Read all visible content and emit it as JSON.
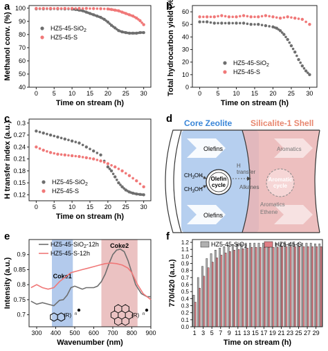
{
  "chart_data": [
    {
      "panel": "a",
      "type": "scatter",
      "xlabel": "Time on stream (h)",
      "ylabel": "Methanol conv. (%)",
      "xlim": [
        -2,
        32
      ],
      "ylim": [
        40,
        102
      ],
      "xticks": [
        0,
        5,
        10,
        15,
        20,
        25,
        30
      ],
      "yticks": [
        40,
        50,
        60,
        70,
        80,
        90,
        100
      ],
      "legend_position": "left",
      "series": [
        {
          "name": "HZ5-45-SiO",
          "sub": "2",
          "color": "#6e6e6e",
          "x": [
            0,
            2,
            4,
            6,
            8,
            10,
            11,
            12,
            13,
            14,
            15,
            16,
            17,
            18,
            19,
            20,
            21,
            22,
            23,
            24,
            25,
            26,
            27,
            28,
            29,
            30
          ],
          "y": [
            99.5,
            99.5,
            99.5,
            99.5,
            99.4,
            99.3,
            99.0,
            98.5,
            98.0,
            97.0,
            96.0,
            95.0,
            94.0,
            93.0,
            91.5,
            89.5,
            87.0,
            85.0,
            83.0,
            82.0,
            81.5,
            81.0,
            81.0,
            81.0,
            81.5,
            81.5
          ]
        },
        {
          "name": "HZ5-45-S",
          "sub": "",
          "color": "#f07878",
          "x": [
            0,
            2,
            4,
            6,
            8,
            10,
            12,
            14,
            16,
            18,
            20,
            21,
            22,
            23,
            24,
            25,
            26,
            27,
            28,
            29,
            30
          ],
          "y": [
            99.8,
            99.8,
            99.8,
            99.8,
            99.8,
            99.8,
            99.8,
            99.8,
            99.7,
            99.6,
            99.4,
            99.0,
            98.5,
            98.0,
            97.0,
            96.0,
            95.0,
            94.0,
            92.5,
            90.5,
            87.5
          ]
        }
      ]
    },
    {
      "panel": "b",
      "type": "scatter",
      "xlabel": "Time on stream (h)",
      "ylabel": "Total hydrocarbon yield (%)",
      "xlim": [
        -2,
        32
      ],
      "ylim": [
        0,
        65
      ],
      "xticks": [
        0,
        5,
        10,
        15,
        20,
        25,
        30
      ],
      "yticks": [
        0,
        10,
        20,
        30,
        40,
        50,
        60
      ],
      "legend_position": "bottom-left",
      "series": [
        {
          "name": "HZ5-45-SiO",
          "sub": "2",
          "color": "#6e6e6e",
          "x": [
            0,
            2,
            4,
            6,
            8,
            10,
            12,
            14,
            16,
            18,
            20,
            21,
            22,
            23,
            24,
            25,
            26,
            27,
            28,
            29,
            30
          ],
          "y": [
            52,
            52,
            51,
            51,
            51,
            51,
            51,
            50,
            50,
            49,
            48,
            47,
            45,
            42,
            38,
            33,
            28,
            22,
            17,
            13,
            10
          ]
        },
        {
          "name": "HZ5-45-S",
          "sub": "",
          "color": "#f07878",
          "x": [
            0,
            2,
            4,
            6,
            8,
            10,
            12,
            14,
            16,
            18,
            20,
            22,
            24,
            26,
            28,
            30
          ],
          "y": [
            56,
            56,
            56,
            57,
            56,
            56,
            57,
            56,
            56,
            57,
            56,
            55,
            56,
            55,
            54,
            50
          ]
        }
      ]
    },
    {
      "panel": "c",
      "type": "scatter",
      "xlabel": "Time on stream (h)",
      "ylabel": "H transfer index (a.u.)",
      "xlim": [
        -2,
        32
      ],
      "ylim": [
        0.105,
        0.31
      ],
      "xticks": [
        0,
        5,
        10,
        15,
        20,
        25,
        30
      ],
      "yticks": [
        0.12,
        0.15,
        0.18,
        0.21,
        0.24,
        0.27,
        0.3
      ],
      "legend_position": "bottom-left",
      "series": [
        {
          "name": "HZ5-45-SiO",
          "sub": "2",
          "color": "#6e6e6e",
          "x": [
            0,
            2,
            4,
            6,
            8,
            10,
            12,
            14,
            16,
            18,
            20,
            21,
            22,
            23,
            24,
            25,
            26,
            27,
            28,
            29,
            30
          ],
          "y": [
            0.28,
            0.275,
            0.27,
            0.265,
            0.26,
            0.255,
            0.25,
            0.24,
            0.23,
            0.22,
            0.19,
            0.18,
            0.165,
            0.15,
            0.14,
            0.132,
            0.127,
            0.124,
            0.122,
            0.121,
            0.12
          ]
        },
        {
          "name": "HZ5-45-S",
          "sub": "",
          "color": "#f07878",
          "x": [
            0,
            2,
            4,
            6,
            8,
            10,
            12,
            14,
            16,
            18,
            20,
            22,
            24,
            26,
            28,
            30
          ],
          "y": [
            0.24,
            0.232,
            0.226,
            0.222,
            0.22,
            0.218,
            0.216,
            0.213,
            0.21,
            0.205,
            0.198,
            0.19,
            0.18,
            0.168,
            0.155,
            0.14
          ]
        }
      ]
    },
    {
      "panel": "e",
      "type": "line",
      "xlabel": "Wavenumber (nm)",
      "ylabel": "Intensity (a.u.)",
      "xlim": [
        260,
        900
      ],
      "ylim": [
        0.66,
        0.95
      ],
      "xticks": [
        300,
        400,
        500,
        600,
        700,
        800,
        900
      ],
      "yticks": [
        0.7,
        0.75,
        0.8,
        0.85,
        0.9
      ],
      "legend_position": "top-left",
      "bands": [
        {
          "label": "Coke1",
          "from": 380,
          "to": 490,
          "color": "#9ab8e6"
        },
        {
          "label": "Coke2",
          "from": 640,
          "to": 830,
          "color": "#e4aeae"
        }
      ],
      "series": [
        {
          "name": "HZ5-45-SiO",
          "sub": "2",
          "suffix": "-12h",
          "color": "#6e6e6e",
          "x": [
            270,
            300,
            330,
            360,
            390,
            420,
            440,
            460,
            480,
            500,
            520,
            540,
            560,
            580,
            600,
            620,
            640,
            660,
            680,
            700,
            720,
            740,
            760,
            780,
            800,
            820,
            850,
            880,
            900
          ],
          "y": [
            0.745,
            0.735,
            0.74,
            0.735,
            0.73,
            0.748,
            0.75,
            0.765,
            0.79,
            0.795,
            0.79,
            0.785,
            0.79,
            0.79,
            0.79,
            0.795,
            0.81,
            0.835,
            0.87,
            0.9,
            0.915,
            0.918,
            0.91,
            0.88,
            0.84,
            0.8,
            0.77,
            0.76,
            0.76
          ]
        },
        {
          "name": "HZ5-45-S",
          "sub": "",
          "suffix": "-12h",
          "color": "#f07878",
          "x": [
            270,
            300,
            330,
            360,
            390,
            420,
            450,
            480,
            510,
            540,
            570,
            600,
            630,
            660,
            690,
            720,
            750,
            780,
            800,
            830,
            860,
            900
          ],
          "y": [
            0.79,
            0.8,
            0.79,
            0.785,
            0.79,
            0.81,
            0.825,
            0.84,
            0.845,
            0.85,
            0.855,
            0.86,
            0.865,
            0.87,
            0.872,
            0.87,
            0.865,
            0.855,
            0.84,
            0.8,
            0.77,
            0.75
          ]
        }
      ]
    },
    {
      "panel": "f",
      "type": "bar",
      "xlabel": "Time on stream (h)",
      "ylabel": "770/420 (a.u.)",
      "xlim": [
        0,
        30
      ],
      "ylim": [
        0,
        1.24
      ],
      "xticks": [
        1,
        3,
        5,
        7,
        9,
        11,
        13,
        15,
        17,
        19,
        21,
        23,
        25,
        27,
        29
      ],
      "yticks": [
        0.0,
        0.1,
        0.2,
        0.3,
        0.4,
        0.5,
        0.6,
        0.7,
        0.8,
        0.9,
        1.0,
        1.1,
        1.2
      ],
      "legend_position": "top",
      "x": [
        1,
        2,
        3,
        4,
        5,
        6,
        7,
        8,
        9,
        10,
        11,
        12,
        13,
        14,
        15,
        16,
        17,
        18,
        19,
        20,
        21,
        22,
        23,
        24,
        25,
        26,
        27,
        28,
        29,
        30
      ],
      "series": [
        {
          "name": "HZ5-45-SiO",
          "sub": "2",
          "color": "#b0b0b0",
          "values": [
            0.45,
            0.7,
            0.86,
            0.97,
            1.04,
            1.09,
            1.12,
            1.14,
            1.16,
            1.17,
            1.18,
            1.18,
            1.19,
            1.19,
            1.19,
            1.19,
            1.19,
            1.19,
            1.19,
            1.19,
            1.19,
            1.19,
            1.19,
            1.19,
            1.19,
            1.19,
            1.19,
            1.19,
            1.18,
            1.18
          ]
        },
        {
          "name": "HZ5-45-S",
          "sub": "",
          "color": "#e07f86",
          "values": [
            0.35,
            0.55,
            0.72,
            0.84,
            0.92,
            0.98,
            1.02,
            1.05,
            1.07,
            1.09,
            1.1,
            1.11,
            1.12,
            1.13,
            1.13,
            1.13,
            1.13,
            1.13,
            1.13,
            1.13,
            1.14,
            1.14,
            1.14,
            1.14,
            1.14,
            1.14,
            1.14,
            1.14,
            1.14,
            1.14
          ]
        }
      ]
    }
  ],
  "panel_letters": [
    "a",
    "b",
    "c",
    "d",
    "e",
    "f"
  ],
  "diagram": {
    "left_title": "Core Zeolite",
    "right_title": "Silicalite-1 Shell",
    "olefins_top": "Olefins",
    "olefins_bottom": "Olefins",
    "ch3oh_top": "CH",
    "ch3oh_sub": "3",
    "ch3oh_tail": "OH",
    "olefin_cycle_line1": "Olefin",
    "olefin_cycle_line2": "cycle",
    "h_transfer_line1": "H",
    "h_transfer_line2": "transfer",
    "alkanes": "Alkanes",
    "aromatic_cycle_line1": "Aromatic",
    "aromatic_cycle_line2": "cycle",
    "aromatics_top": "Aromatics",
    "aromatics_bottom": "Aromatics",
    "ethene": "Ethene",
    "colors": {
      "core": "#a9c7ec",
      "shell": "#eab4b4",
      "core_title": "#3a86d8",
      "shell_title": "#e8866e"
    }
  },
  "structures": {
    "r_label": "(R)",
    "n_label": "n"
  }
}
